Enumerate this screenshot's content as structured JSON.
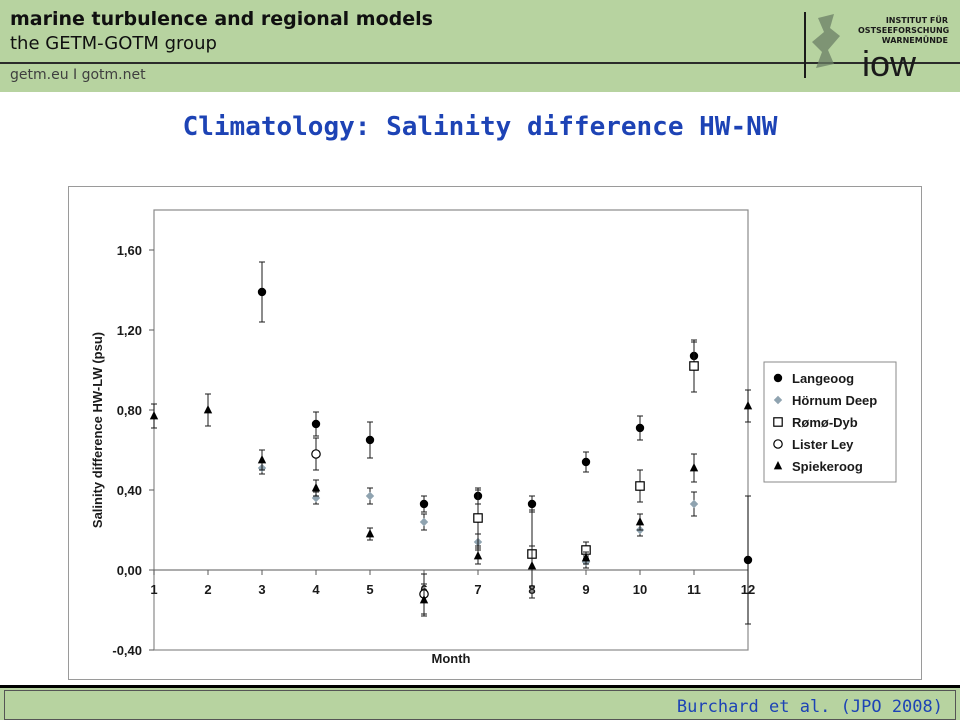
{
  "header": {
    "title": "marine turbulence and regional models",
    "subtitle": "the GETM-GOTM group",
    "links": "getm.eu  I  gotm.net",
    "logo": {
      "text": "iow",
      "line1": "INSTITUT FÜR",
      "line2": "OSTSEEFORSCHUNG",
      "line3": "WARNEMÜNDE"
    }
  },
  "page_title": "Climatology: Salinity difference HW-NW",
  "footer": {
    "citation": "Burchard et al. (JPO 2008)"
  },
  "chart_data": {
    "type": "scatter",
    "xlabel": "Month",
    "ylabel": "Salinity difference HW-LW (psu)",
    "xlim": [
      1,
      12
    ],
    "ylim": [
      -0.4,
      1.8
    ],
    "x_ticks": [
      "1",
      "2",
      "3",
      "4",
      "5",
      "6",
      "7",
      "8",
      "9",
      "10",
      "11",
      "12"
    ],
    "y_ticks": [
      "-0,40",
      "0,00",
      "0,40",
      "0,80",
      "1,20",
      "1,60"
    ],
    "y_tick_values": [
      -0.4,
      0.0,
      0.4,
      0.8,
      1.2,
      1.6
    ],
    "grid": false,
    "legend_position": "right",
    "series": [
      {
        "name": "Langeoog",
        "marker": "circle-filled",
        "color": "#000000",
        "points": [
          {
            "x": 3,
            "y": 1.39,
            "err": 0.15
          },
          {
            "x": 4,
            "y": 0.73,
            "err": 0.06
          },
          {
            "x": 5,
            "y": 0.65,
            "err": 0.09
          },
          {
            "x": 6,
            "y": 0.33,
            "err": 0.04
          },
          {
            "x": 7,
            "y": 0.37,
            "err": 0.04
          },
          {
            "x": 8,
            "y": 0.33,
            "err": 0.04
          },
          {
            "x": 9,
            "y": 0.54,
            "err": 0.05
          },
          {
            "x": 10,
            "y": 0.71,
            "err": 0.06
          },
          {
            "x": 11,
            "y": 1.07,
            "err": 0.07
          },
          {
            "x": 12,
            "y": 0.05,
            "err": 0.32
          }
        ]
      },
      {
        "name": "Hörnum Deep",
        "marker": "diamond-filled",
        "color": "#8fa3b0",
        "points": [
          {
            "x": 3,
            "y": 0.51,
            "err": 0.03
          },
          {
            "x": 4,
            "y": 0.36,
            "err": 0.03
          },
          {
            "x": 5,
            "y": 0.37,
            "err": 0.04
          },
          {
            "x": 6,
            "y": 0.24,
            "err": 0.04
          },
          {
            "x": 7,
            "y": 0.14,
            "err": 0.04
          },
          {
            "x": 9,
            "y": 0.04,
            "err": 0.03
          },
          {
            "x": 10,
            "y": 0.2,
            "err": 0.03
          },
          {
            "x": 11,
            "y": 0.33,
            "err": 0.06
          }
        ]
      },
      {
        "name": "Rømø-Dyb",
        "marker": "square-open",
        "color": "#000000",
        "points": [
          {
            "x": 7,
            "y": 0.26,
            "err": 0.14
          },
          {
            "x": 8,
            "y": 0.08,
            "err": 0.22
          },
          {
            "x": 9,
            "y": 0.1,
            "err": 0.04
          },
          {
            "x": 10,
            "y": 0.42,
            "err": 0.08
          },
          {
            "x": 11,
            "y": 1.02,
            "err": 0.13
          }
        ]
      },
      {
        "name": "Lister Ley",
        "marker": "circle-open",
        "color": "#000000",
        "points": [
          {
            "x": 4,
            "y": 0.58,
            "err": 0.08
          },
          {
            "x": 6,
            "y": -0.12,
            "err": 0.1
          }
        ]
      },
      {
        "name": "Spiekeroog",
        "marker": "triangle-filled",
        "color": "#000000",
        "points": [
          {
            "x": 1,
            "y": 0.77,
            "err": 0.06
          },
          {
            "x": 2,
            "y": 0.8,
            "err": 0.08
          },
          {
            "x": 3,
            "y": 0.55,
            "err": 0.05
          },
          {
            "x": 4,
            "y": 0.41,
            "err": 0.04
          },
          {
            "x": 5,
            "y": 0.18,
            "err": 0.03
          },
          {
            "x": 6,
            "y": -0.15,
            "err": 0.08
          },
          {
            "x": 7,
            "y": 0.07,
            "err": 0.04
          },
          {
            "x": 8,
            "y": 0.02,
            "err": 0.1
          },
          {
            "x": 9,
            "y": 0.06,
            "err": 0.03
          },
          {
            "x": 10,
            "y": 0.24,
            "err": 0.04
          },
          {
            "x": 11,
            "y": 0.51,
            "err": 0.07
          },
          {
            "x": 12,
            "y": 0.82,
            "err": 0.08
          }
        ]
      }
    ]
  }
}
